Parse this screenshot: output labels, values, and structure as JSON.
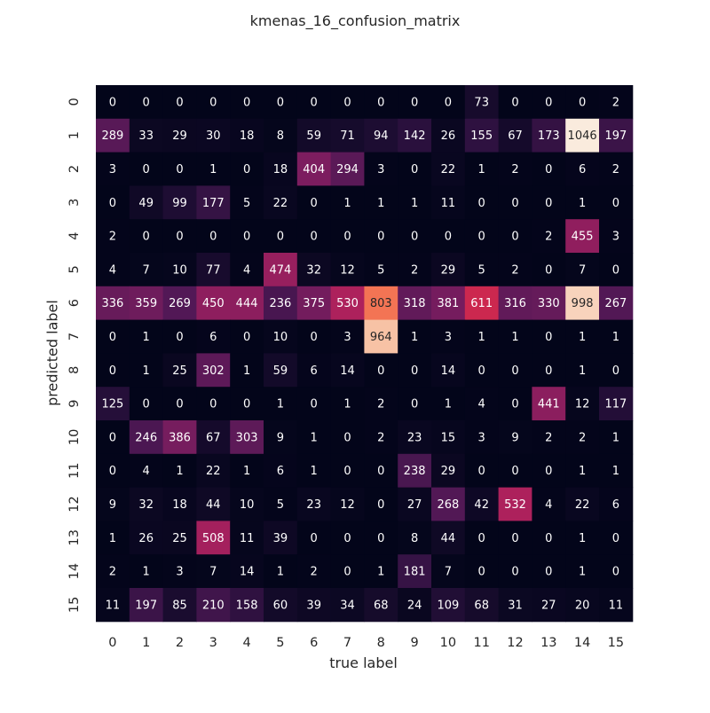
{
  "chart_data": {
    "type": "heatmap",
    "title": "kmenas_16_confusion_matrix",
    "xlabel": "true label",
    "ylabel": "predicted label",
    "x_categories": [
      "0",
      "1",
      "2",
      "3",
      "4",
      "5",
      "6",
      "7",
      "8",
      "9",
      "10",
      "11",
      "12",
      "13",
      "14",
      "15"
    ],
    "y_categories": [
      "0",
      "1",
      "2",
      "3",
      "4",
      "5",
      "6",
      "7",
      "8",
      "9",
      "10",
      "11",
      "12",
      "13",
      "14",
      "15"
    ],
    "colormap": "rocket",
    "color_range": [
      0,
      1046
    ],
    "colorbar": false,
    "grid": false,
    "values": [
      [
        0,
        0,
        0,
        0,
        0,
        0,
        0,
        0,
        0,
        0,
        0,
        73,
        0,
        0,
        0,
        2
      ],
      [
        289,
        33,
        29,
        30,
        18,
        8,
        59,
        71,
        94,
        142,
        26,
        155,
        67,
        173,
        1046,
        197
      ],
      [
        3,
        0,
        0,
        1,
        0,
        18,
        404,
        294,
        3,
        0,
        22,
        1,
        2,
        0,
        6,
        2
      ],
      [
        0,
        49,
        99,
        177,
        5,
        22,
        0,
        1,
        1,
        1,
        11,
        0,
        0,
        0,
        1,
        0
      ],
      [
        2,
        0,
        0,
        0,
        0,
        0,
        0,
        0,
        0,
        0,
        0,
        0,
        0,
        2,
        455,
        3
      ],
      [
        4,
        7,
        10,
        77,
        4,
        474,
        32,
        12,
        5,
        2,
        29,
        5,
        2,
        0,
        7,
        0
      ],
      [
        336,
        359,
        269,
        450,
        444,
        236,
        375,
        530,
        803,
        318,
        381,
        611,
        316,
        330,
        998,
        267
      ],
      [
        0,
        1,
        0,
        6,
        0,
        10,
        0,
        3,
        964,
        1,
        3,
        1,
        1,
        0,
        1,
        1
      ],
      [
        0,
        1,
        25,
        302,
        1,
        59,
        6,
        14,
        0,
        0,
        14,
        0,
        0,
        0,
        1,
        0
      ],
      [
        125,
        0,
        0,
        0,
        0,
        1,
        0,
        1,
        2,
        0,
        1,
        4,
        0,
        441,
        12,
        117
      ],
      [
        0,
        246,
        386,
        67,
        303,
        9,
        1,
        0,
        2,
        23,
        15,
        3,
        9,
        2,
        2,
        1
      ],
      [
        0,
        4,
        1,
        22,
        1,
        6,
        1,
        0,
        0,
        238,
        29,
        0,
        0,
        0,
        1,
        1
      ],
      [
        9,
        32,
        18,
        44,
        10,
        5,
        23,
        12,
        0,
        27,
        268,
        42,
        532,
        4,
        22,
        6
      ],
      [
        1,
        26,
        25,
        508,
        11,
        39,
        0,
        0,
        0,
        8,
        44,
        0,
        0,
        0,
        1,
        0
      ],
      [
        2,
        1,
        3,
        7,
        14,
        1,
        2,
        0,
        1,
        181,
        7,
        0,
        0,
        0,
        1,
        0
      ],
      [
        11,
        197,
        85,
        210,
        158,
        60,
        39,
        34,
        68,
        24,
        109,
        68,
        31,
        27,
        20,
        11
      ]
    ]
  }
}
